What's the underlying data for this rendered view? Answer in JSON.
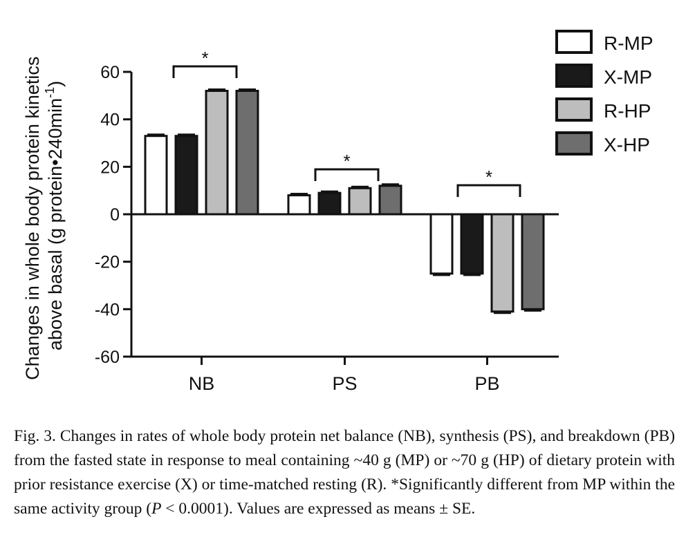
{
  "chart_data": {
    "type": "bar",
    "categories": [
      "NB",
      "PS",
      "PB"
    ],
    "series": [
      {
        "name": "R-MP",
        "values": [
          33,
          8,
          -25
        ],
        "color": "#ffffff"
      },
      {
        "name": "X-MP",
        "values": [
          33,
          9,
          -25
        ],
        "color": "#1a1a1a"
      },
      {
        "name": "R-HP",
        "values": [
          52,
          11,
          -41
        ],
        "color": "#bdbdbd"
      },
      {
        "name": "X-HP",
        "values": [
          52,
          12,
          -40
        ],
        "color": "#6e6e6e"
      }
    ],
    "ylabel_line1": "Changes in whole body protein kinetics",
    "ylabel_line2": "above basal (g protein•240min",
    "ylabel_sup": "-1",
    "ylabel_close": ")",
    "ylim": [
      -60,
      60
    ],
    "yticks": [
      60,
      40,
      20,
      0,
      -20,
      -40,
      -60
    ],
    "legend_position": "top-right",
    "annotations": [
      {
        "category": "NB",
        "text": "*"
      },
      {
        "category": "PS",
        "text": "*"
      },
      {
        "category": "PB",
        "text": "*"
      }
    ]
  },
  "caption": {
    "lines": [
      "Fig. 3. Changes in rates of whole body protein net balance (NB), synthesis",
      "(PS), and breakdown (PB) from the fasted state in response to meal containing",
      "~40 g (MP) or ~70 g (HP) of dietary protein with prior resistance exercise (X)",
      "or time-matched resting (R). *Significantly different from MP within the same"
    ],
    "last_prefix": "activity group (",
    "last_p": "P",
    "last_suffix": " < 0.0001). Values are expressed as means ± SE."
  }
}
